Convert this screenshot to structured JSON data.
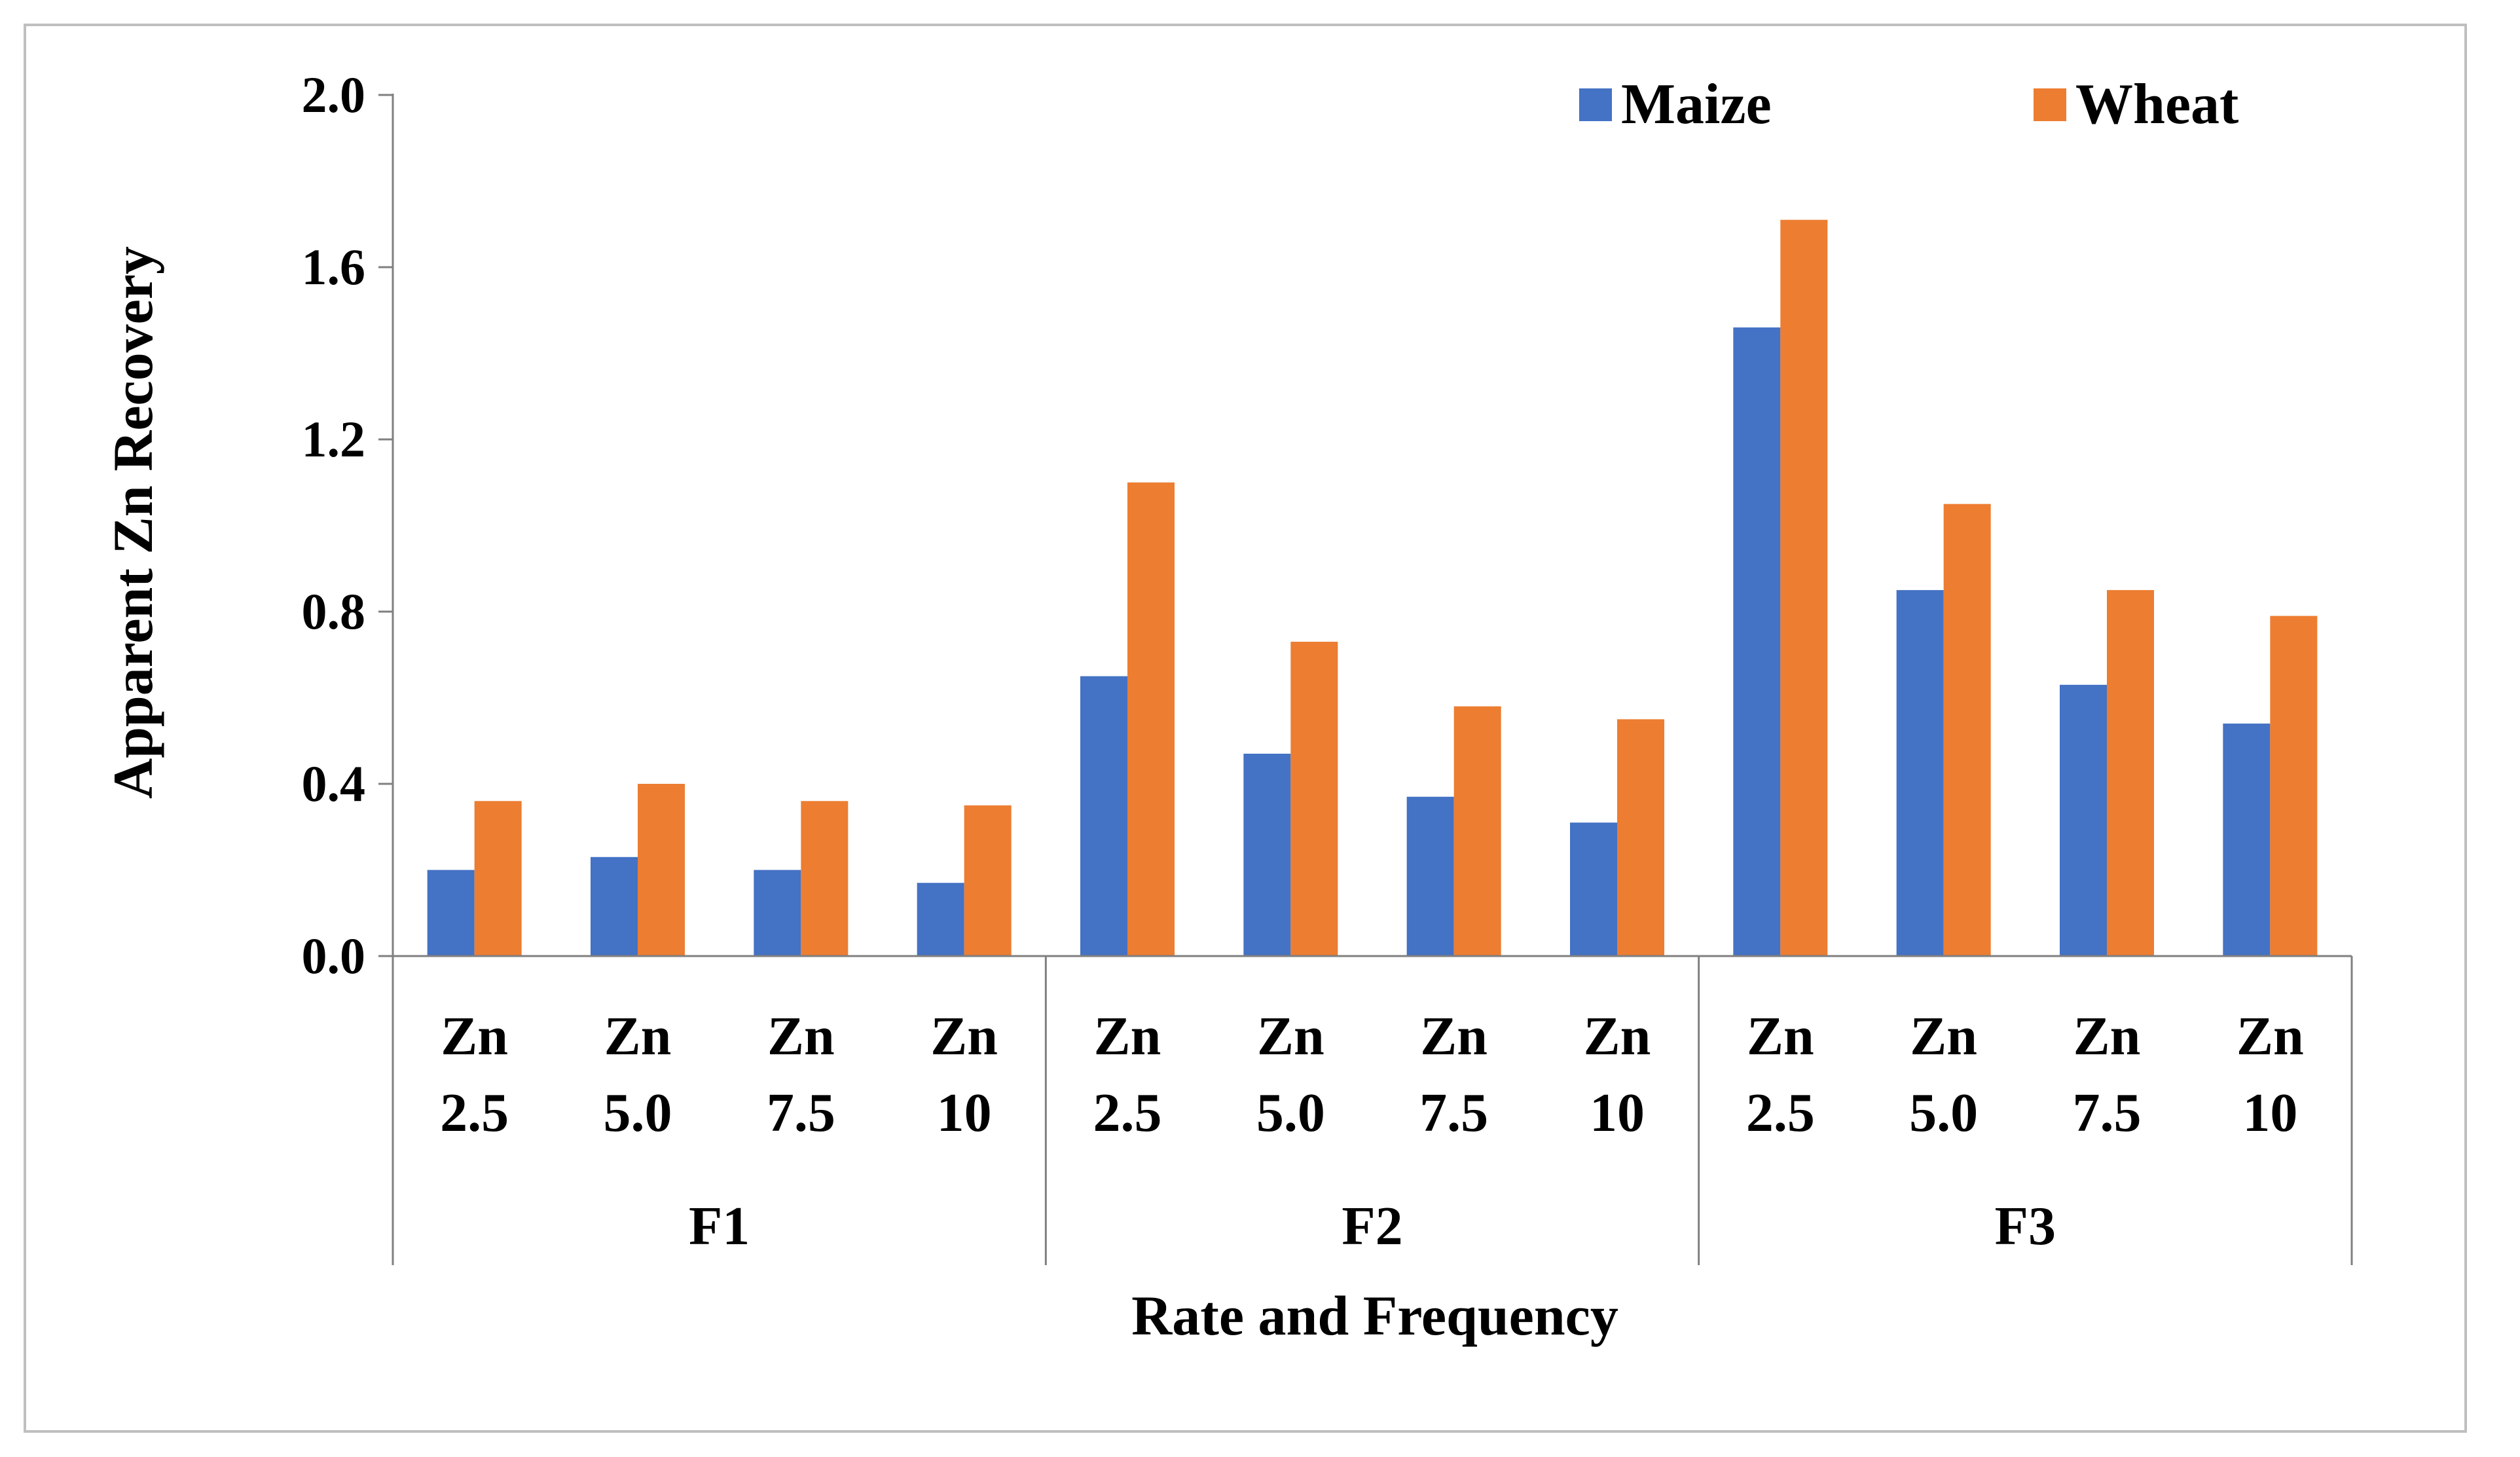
{
  "chart_data": {
    "type": "bar",
    "xlabel": "Rate and Frequency",
    "ylabel": "Apparent Zn Recovery",
    "ylim": [
      0,
      2.0
    ],
    "yticks": [
      "0.0",
      "0.4",
      "0.8",
      "1.2",
      "1.6",
      "2.0"
    ],
    "grid": false,
    "legend_position": "top-right",
    "groups": [
      "F1",
      "F2",
      "F3"
    ],
    "categories": [
      {
        "group": "F1",
        "line1": "Zn",
        "line2": "2.5"
      },
      {
        "group": "F1",
        "line1": "Zn",
        "line2": "5.0"
      },
      {
        "group": "F1",
        "line1": "Zn",
        "line2": "7.5"
      },
      {
        "group": "F1",
        "line1": "Zn",
        "line2": "10"
      },
      {
        "group": "F2",
        "line1": "Zn",
        "line2": "2.5"
      },
      {
        "group": "F2",
        "line1": "Zn",
        "line2": "5.0"
      },
      {
        "group": "F2",
        "line1": "Zn",
        "line2": "7.5"
      },
      {
        "group": "F2",
        "line1": "Zn",
        "line2": "10"
      },
      {
        "group": "F3",
        "line1": "Zn",
        "line2": "2.5"
      },
      {
        "group": "F3",
        "line1": "Zn",
        "line2": "5.0"
      },
      {
        "group": "F3",
        "line1": "Zn",
        "line2": "7.5"
      },
      {
        "group": "F3",
        "line1": "Zn",
        "line2": "10"
      }
    ],
    "series": [
      {
        "name": "Maize",
        "color": "#4472C4",
        "values": [
          0.2,
          0.23,
          0.2,
          0.17,
          0.65,
          0.47,
          0.37,
          0.31,
          1.46,
          0.85,
          0.63,
          0.54
        ]
      },
      {
        "name": "Wheat",
        "color": "#ED7D31",
        "values": [
          0.36,
          0.4,
          0.36,
          0.35,
          1.1,
          0.73,
          0.58,
          0.55,
          1.71,
          1.05,
          0.85,
          0.79
        ]
      }
    ]
  }
}
